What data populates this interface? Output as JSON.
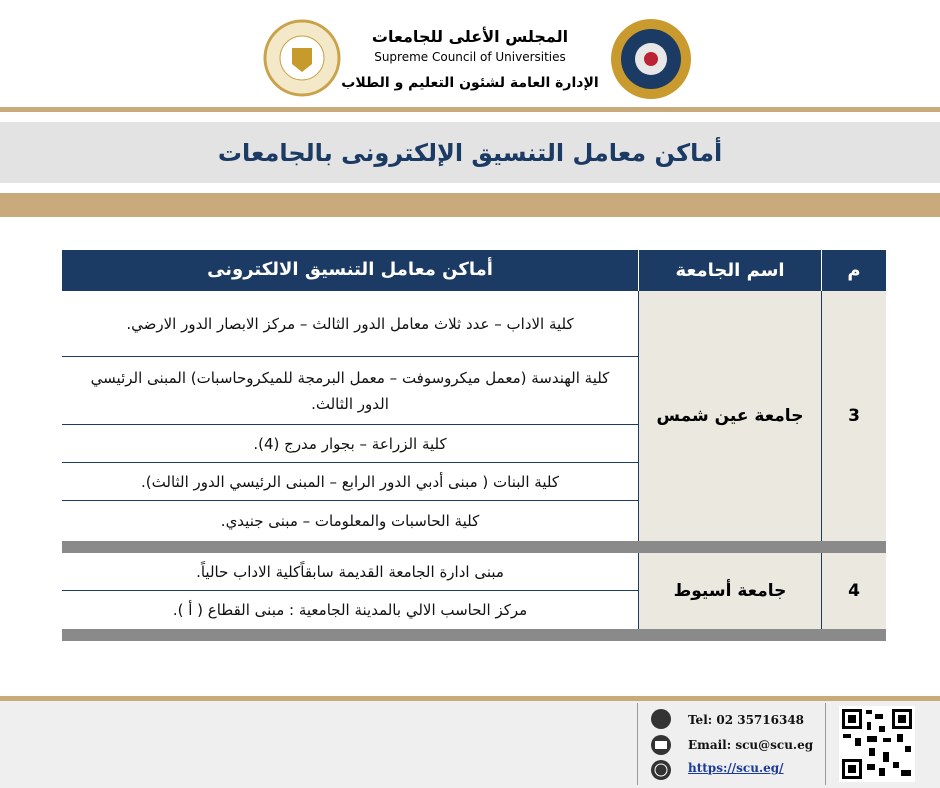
{
  "header": {
    "council_ar": "المجلس الأعلى للجامعات",
    "council_en": "Supreme Council of Universities",
    "admin": "الإدارة العامة لشئون التعليم و الطلاب"
  },
  "title": "أماكن معامل التنسيق الإلكترونى بالجامعات",
  "table": {
    "columns": [
      "م",
      "اسم الجامعة",
      "أماكن معامل التنسيق الالكترونى"
    ],
    "rows": [
      {
        "number": "3",
        "university": "جامعة عين شمس",
        "locations": [
          "كلية الاداب – عدد ثلاث معامل الدور الثالث – مركز الابصار الدور الارضي.",
          "كلية الهندسة  (معمل ميكروسوفت – معمل البرمجة للميكروحاسبات) المبنى الرئيسي الدور الثالث.",
          "كلية الزراعة – بجوار مدرج (4).",
          "كلية البنات ( مبنى أدبي الدور الرابع – المبنى الرئيسي الدور الثالث).",
          "كلية الحاسبات والمعلومات – مبنى جنيدي."
        ]
      },
      {
        "number": "4",
        "university": "جامعة أسيوط",
        "locations": [
          "مبنى ادارة الجامعة القديمة سابقاًكلية الاداب حالياً.",
          "مركز الحاسب الالي  بالمدينة الجامعية : مبنى القطاع ( أ )."
        ]
      }
    ]
  },
  "footer": {
    "tel": "Tel: 02 35716348",
    "email": "Email:  scu@scu.eg",
    "url": "https://scu.eg/"
  }
}
